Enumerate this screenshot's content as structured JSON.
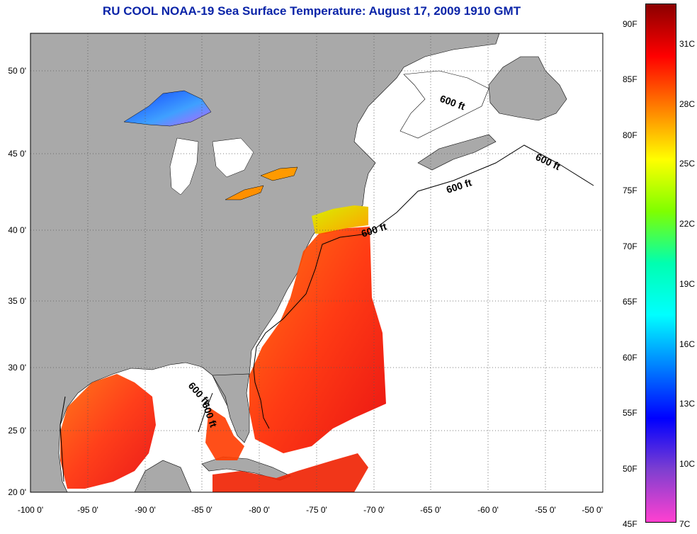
{
  "title": "RU COOL  NOAA-19  Sea Surface Temperature:  August 17, 2009 1910 GMT",
  "colors": {
    "title": "#0a24a8",
    "land": "#a9a9a9",
    "ocean_nodata": "#ffffff",
    "grid": "#555555"
  },
  "map": {
    "lon_range": [
      -100,
      -50
    ],
    "lat_range": [
      20,
      52.5
    ],
    "lon_labels": [
      "-100 0'",
      "-95 0'",
      "-90 0'",
      "-85 0'",
      "-80 0'",
      "-75 0'",
      "-70 0'",
      "-65 0'",
      "-60 0'",
      "-55 0'",
      "-50 0'"
    ],
    "lat_labels": [
      "50 0'",
      "45 0'",
      "40 0'",
      "35 0'",
      "30 0'",
      "25 0'",
      "20 0'"
    ],
    "contour_labels": [
      "600 ft",
      "600 ft",
      "600 ft",
      "600 ft",
      "600 ft",
      "600 ft"
    ]
  },
  "colorbar": {
    "fahrenheit_labels": [
      "90F",
      "85F",
      "80F",
      "75F",
      "70F",
      "65F",
      "60F",
      "55F",
      "50F",
      "45F"
    ],
    "celsius_labels": [
      "31C",
      "28C",
      "25C",
      "22C",
      "19C",
      "16C",
      "13C",
      "10C",
      "7C"
    ],
    "gradient_stops": [
      "#8b0000",
      "#ff0000",
      "#ff7f00",
      "#ffff00",
      "#7fff00",
      "#00ffb0",
      "#00ffff",
      "#0080ff",
      "#0000ff",
      "#7f3fd0",
      "#ff40d0"
    ]
  }
}
